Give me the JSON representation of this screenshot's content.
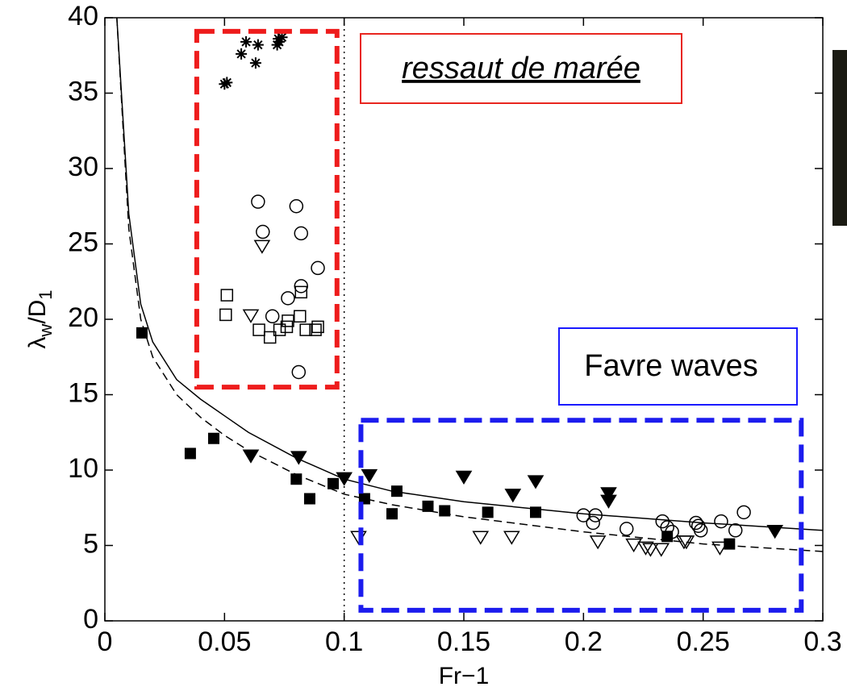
{
  "chart_data": {
    "type": "scatter",
    "xlabel": "Fr−1",
    "ylabel": [
      "λ",
      "w",
      "/D",
      "1"
    ],
    "xlim": [
      0,
      0.3
    ],
    "ylim": [
      0,
      40
    ],
    "xticks": [
      0,
      0.05,
      0.1,
      0.15,
      0.2,
      0.25,
      0.3
    ],
    "yticks": [
      0,
      5,
      10,
      15,
      20,
      25,
      30,
      35,
      40
    ],
    "vline": 0.1,
    "series": [
      {
        "marker": "square-filled",
        "color": "#000000",
        "x": [
          0.0155,
          0.0357,
          0.0455,
          0.08,
          0.0856,
          0.0954,
          0.1085,
          0.12,
          0.122,
          0.135,
          0.142,
          0.16,
          0.18,
          0.235,
          0.261
        ],
        "values": [
          19.1,
          11.1,
          12.1,
          9.4,
          8.1,
          9.1,
          8.1,
          7.1,
          8.6,
          7.6,
          7.3,
          7.2,
          7.2,
          5.6,
          5.1
        ]
      },
      {
        "marker": "triangle-filled",
        "color": "#000000",
        "x": [
          0.061,
          0.081,
          0.1,
          0.1105,
          0.15,
          0.1705,
          0.18,
          0.2105,
          0.2105,
          0.28
        ],
        "values": [
          11.0,
          10.9,
          9.5,
          9.7,
          9.6,
          8.4,
          9.3,
          8.5,
          8.0,
          6.0
        ]
      },
      {
        "marker": "circle-open",
        "color": "#000000",
        "x": [
          0.064,
          0.08,
          0.066,
          0.082,
          0.089,
          0.082,
          0.0765,
          0.07,
          0.081,
          0.2,
          0.205,
          0.204,
          0.218,
          0.233,
          0.235,
          0.237,
          0.247,
          0.248,
          0.249,
          0.2575,
          0.2635,
          0.267
        ],
        "values": [
          27.8,
          27.5,
          25.8,
          25.7,
          23.4,
          22.2,
          21.4,
          20.2,
          16.5,
          7.0,
          7.0,
          6.5,
          6.1,
          6.6,
          6.2,
          5.9,
          6.5,
          6.3,
          6.0,
          6.6,
          6.0,
          7.2
        ]
      },
      {
        "marker": "triangle-open",
        "color": "#000000",
        "x": [
          0.0657,
          0.061,
          0.106,
          0.157,
          0.17,
          0.206,
          0.221,
          0.226,
          0.228,
          0.2325,
          0.242,
          0.243,
          0.257
        ],
        "values": [
          24.9,
          20.3,
          5.6,
          5.6,
          5.6,
          5.3,
          5.1,
          4.9,
          4.8,
          4.8,
          5.3,
          5.3,
          4.9
        ]
      },
      {
        "marker": "square-open",
        "color": "#000000",
        "x": [
          0.051,
          0.0505,
          0.0644,
          0.069,
          0.073,
          0.076,
          0.0765,
          0.0815,
          0.082,
          0.084,
          0.088,
          0.089
        ],
        "values": [
          21.6,
          20.3,
          19.3,
          18.8,
          19.3,
          19.5,
          19.9,
          20.2,
          21.8,
          19.3,
          19.3,
          19.5
        ]
      },
      {
        "marker": "asterisk",
        "color": "#000000",
        "x": [
          0.05,
          0.051,
          0.057,
          0.059,
          0.063,
          0.064,
          0.072,
          0.0728,
          0.074,
          0.0725
        ],
        "values": [
          35.6,
          35.7,
          37.6,
          38.4,
          37.0,
          38.2,
          38.2,
          38.4,
          38.7,
          38.6
        ]
      },
      {
        "line": "solid",
        "color": "#000000",
        "x": [
          0.005,
          0.01,
          0.015,
          0.02,
          0.03,
          0.04,
          0.05,
          0.06,
          0.08,
          0.1,
          0.12,
          0.15,
          0.2,
          0.25,
          0.3
        ],
        "values": [
          40,
          27,
          21,
          18.5,
          16,
          14.7,
          13.6,
          12.5,
          10.8,
          9.4,
          8.6,
          7.9,
          7.1,
          6.5,
          6.0
        ]
      },
      {
        "line": "dashed",
        "color": "#000000",
        "x": [
          0.005,
          0.01,
          0.015,
          0.02,
          0.03,
          0.04,
          0.05,
          0.06,
          0.08,
          0.1,
          0.12,
          0.15,
          0.2,
          0.25,
          0.3
        ],
        "values": [
          40,
          26,
          20,
          17.5,
          15,
          13.5,
          12.3,
          11.3,
          9.7,
          8.4,
          7.7,
          6.9,
          5.9,
          5.1,
          4.6
        ]
      }
    ],
    "regions": [
      {
        "color": "#ee1c1c",
        "x": [
          0.0384,
          0.097
        ],
        "y": [
          15.5,
          39.1
        ]
      },
      {
        "color": "#1c1cee",
        "x": [
          0.107,
          0.291
        ],
        "y": [
          0.7,
          13.3
        ]
      }
    ],
    "annotations": [
      {
        "text": "ressaut de marée",
        "color": "#e8261f"
      },
      {
        "text": "Favre waves",
        "color": "#1a1aff"
      }
    ]
  }
}
